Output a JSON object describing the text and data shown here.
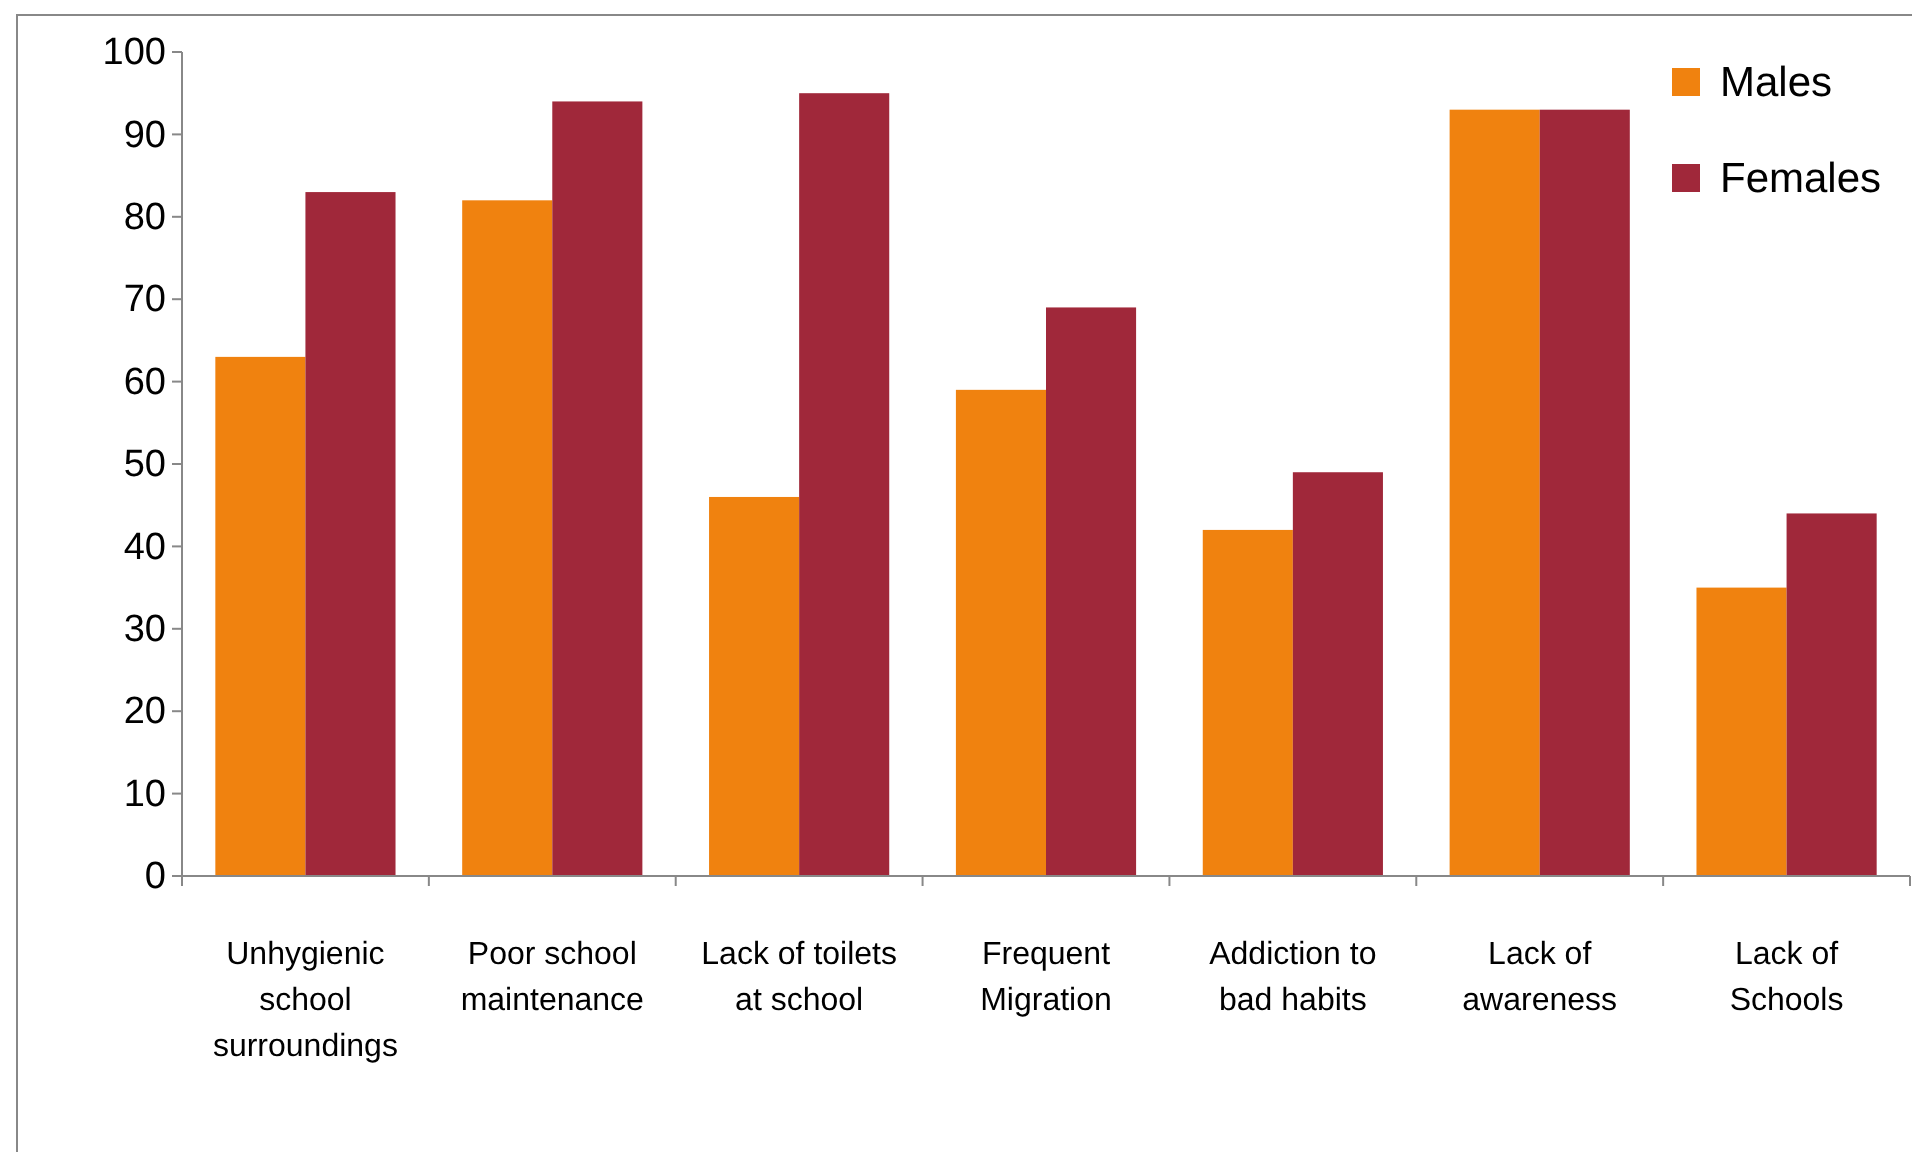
{
  "chart_data": {
    "type": "bar",
    "categories": [
      "Unhygienic school surroundings",
      "Poor school maintenance",
      "Lack of toilets at school",
      "Frequent Migration",
      "Addiction to bad habits",
      "Lack of awareness",
      "Lack of Schools"
    ],
    "series": [
      {
        "name": "Males",
        "color": "#f0820f",
        "values": [
          63,
          82,
          46,
          59,
          42,
          93,
          35
        ]
      },
      {
        "name": "Females",
        "color": "#a0283a",
        "values": [
          83,
          94,
          95,
          69,
          49,
          93,
          44
        ]
      }
    ],
    "ylim": [
      0,
      100
    ],
    "yticks": [
      0,
      10,
      20,
      30,
      40,
      50,
      60,
      70,
      80,
      90,
      100
    ],
    "grid": false,
    "legend": "top right"
  }
}
